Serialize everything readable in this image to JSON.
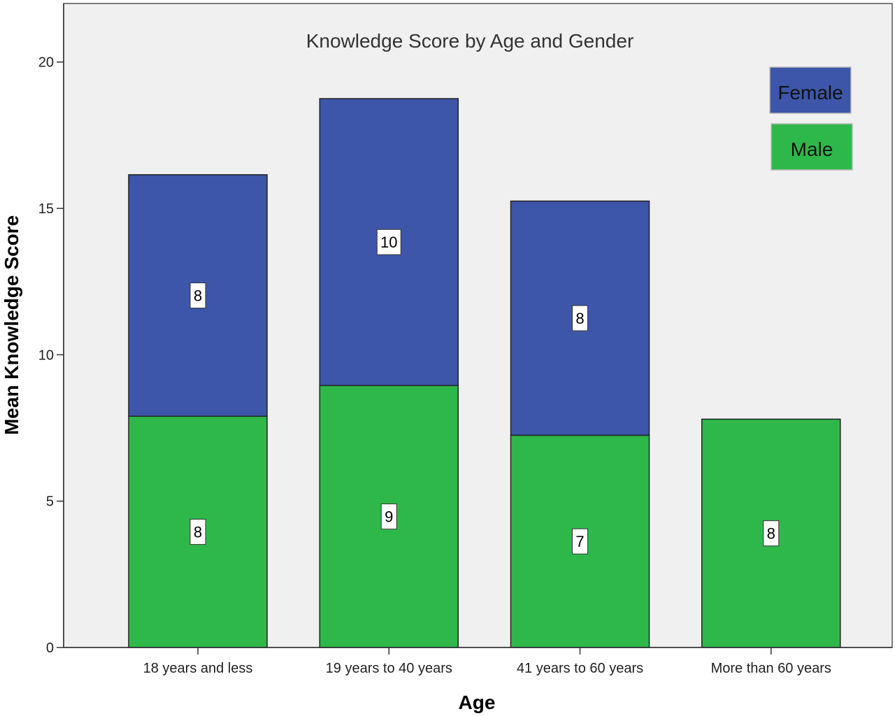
{
  "chart_data": {
    "type": "bar",
    "stacked": true,
    "title": "Knowledge Score by Age and Gender",
    "xlabel": "Age",
    "ylabel": "Mean Knowledge Score",
    "ylim": [
      0,
      22
    ],
    "yticks": [
      0,
      5,
      10,
      15,
      20
    ],
    "grid": false,
    "legend_position": "top-right",
    "categories": [
      "18 years and less",
      "19 years to 40 years",
      "41 years to 60 years",
      "More than 60 years"
    ],
    "series": [
      {
        "name": "Male",
        "color": "#2fb84a",
        "values": [
          7.9,
          8.95,
          7.25,
          7.8
        ],
        "labels": [
          "8",
          "9",
          "7",
          "8"
        ]
      },
      {
        "name": "Female",
        "color": "#3d56a9",
        "values": [
          8.25,
          9.8,
          8.0,
          0
        ],
        "labels": [
          "8",
          "10",
          "8",
          ""
        ]
      }
    ],
    "legend_order": [
      "Female",
      "Male"
    ],
    "plot_background": "#f0f0f0"
  }
}
